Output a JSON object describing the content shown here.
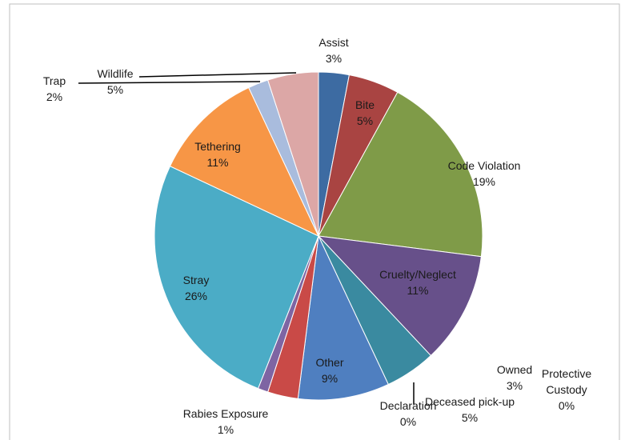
{
  "chart_data": {
    "type": "pie",
    "title": "",
    "legend": "none",
    "slices": [
      {
        "name": "Assist",
        "value": 3,
        "label": "3%",
        "color": "#3d6ba2"
      },
      {
        "name": "Bite",
        "value": 5,
        "label": "5%",
        "color": "#a94442"
      },
      {
        "name": "Code Violation",
        "value": 19,
        "label": "19%",
        "color": "#7f9b48"
      },
      {
        "name": "Cruelty/Neglect",
        "value": 11,
        "label": "11%",
        "color": "#67508a"
      },
      {
        "name": "Deceased pick-up",
        "value": 5,
        "label": "5%",
        "color": "#3a8aa0"
      },
      {
        "name": "Declaration",
        "value": 0,
        "label": "0%",
        "color": "#d9832e"
      },
      {
        "name": "Other",
        "value": 9,
        "label": "9%",
        "color": "#4f7fc0"
      },
      {
        "name": "Owned",
        "value": 3,
        "label": "3%",
        "color": "#c94a47"
      },
      {
        "name": "Protective Custody",
        "value": 0,
        "label": "0%",
        "color": "#9bbb59"
      },
      {
        "name": "Rabies Exposure",
        "value": 1,
        "label": "1%",
        "color": "#7e65a3"
      },
      {
        "name": "Stray",
        "value": 26,
        "label": "26%",
        "color": "#4bacc6"
      },
      {
        "name": "Tethering",
        "value": 11,
        "label": "11%",
        "color": "#f79646"
      },
      {
        "name": "Trap",
        "value": 2,
        "label": "2%",
        "color": "#a9bcdd"
      },
      {
        "name": "Wildlife",
        "value": 5,
        "label": "5%",
        "color": "#dca7a6"
      }
    ]
  }
}
